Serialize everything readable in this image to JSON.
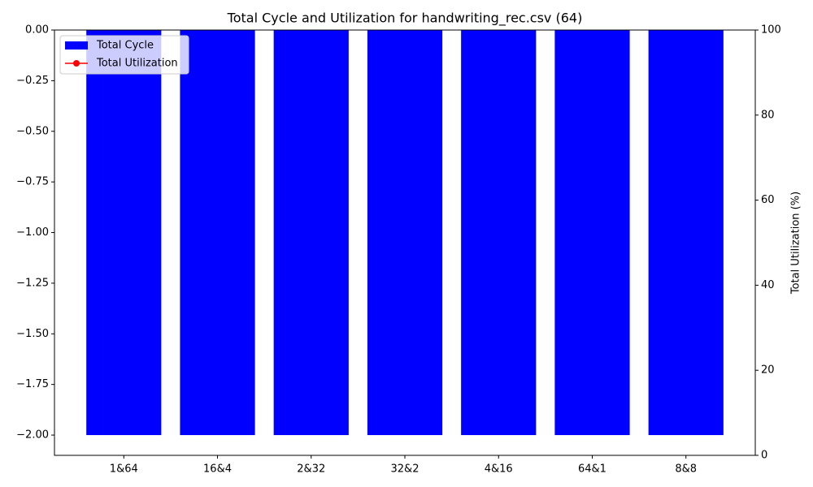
{
  "chart_data": {
    "type": "bar",
    "title": "Total Cycle and Utilization for handwriting_rec.csv (64)",
    "categories": [
      "1&64",
      "16&4",
      "2&32",
      "32&2",
      "4&16",
      "64&1",
      "8&8"
    ],
    "series": [
      {
        "name": "Total Cycle",
        "color": "#0000ff",
        "type": "bar",
        "values": [
          -2,
          -2,
          -2,
          -2,
          -2,
          -2,
          -2
        ]
      },
      {
        "name": "Total Utilization",
        "color": "#ff0000",
        "type": "line",
        "marker": "o",
        "axis": "y2",
        "values": [
          null,
          null,
          null,
          null,
          null,
          null,
          null
        ]
      }
    ],
    "ylim": [
      -2.1,
      0
    ],
    "yticks": [
      {
        "value": 0,
        "label": "0.00"
      },
      {
        "value": -0.25,
        "label": "−0.25"
      },
      {
        "value": -0.5,
        "label": "−0.50"
      },
      {
        "value": -0.75,
        "label": "−0.75"
      },
      {
        "value": -1,
        "label": "−1.00"
      },
      {
        "value": -1.25,
        "label": "−1.25"
      },
      {
        "value": -1.5,
        "label": "−1.50"
      },
      {
        "value": -1.75,
        "label": "−1.75"
      },
      {
        "value": -2,
        "label": "−2.00"
      }
    ],
    "y2lim": [
      0,
      100
    ],
    "y2ticks": [
      0,
      20,
      40,
      60,
      80,
      100
    ],
    "y2label": "Total Utilization (%)",
    "legend": "upper left"
  }
}
